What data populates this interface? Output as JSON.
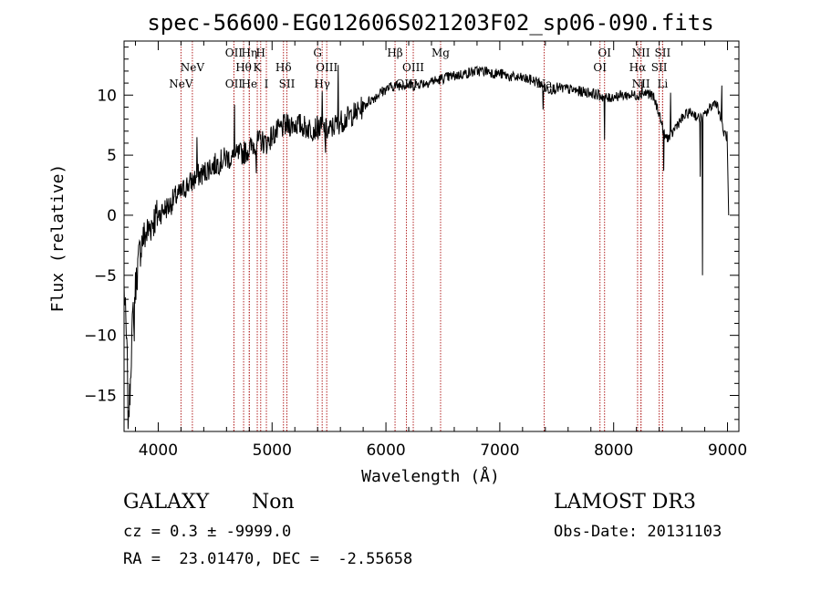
{
  "chart_data": {
    "type": "line",
    "title": "spec-56600-EG012606S021203F02_sp06-090.fits",
    "xlabel": "Wavelength (Å)",
    "ylabel": "Flux (relative)",
    "xlim": [
      3700,
      9100
    ],
    "ylim": [
      -18,
      14.5
    ],
    "xticks": [
      4000,
      5000,
      6000,
      7000,
      8000,
      9000
    ],
    "yticks": [
      -15,
      -10,
      -5,
      0,
      5,
      10
    ],
    "grid": false,
    "line_color": "#000000",
    "marker_color": "#b22222",
    "anchors": [
      [
        3700,
        -6
      ],
      [
        3715,
        -9
      ],
      [
        3730,
        -13
      ],
      [
        3745,
        -16.5
      ],
      [
        3760,
        -12
      ],
      [
        3780,
        -8
      ],
      [
        3800,
        -6
      ],
      [
        3830,
        -3.5
      ],
      [
        3860,
        -2
      ],
      [
        3900,
        -1.5
      ],
      [
        3950,
        -0.5
      ],
      [
        4000,
        0
      ],
      [
        4050,
        0.5
      ],
      [
        4100,
        0.8
      ],
      [
        4150,
        1.5
      ],
      [
        4200,
        1.8
      ],
      [
        4250,
        2.5
      ],
      [
        4300,
        2.8
      ],
      [
        4350,
        3.3
      ],
      [
        4400,
        3.5
      ],
      [
        4450,
        4
      ],
      [
        4500,
        4.2
      ],
      [
        4550,
        4.5
      ],
      [
        4600,
        4.8
      ],
      [
        4650,
        4.7
      ],
      [
        4700,
        5
      ],
      [
        4750,
        5.2
      ],
      [
        4800,
        5.5
      ],
      [
        4850,
        6
      ],
      [
        4900,
        6.2
      ],
      [
        4950,
        6
      ],
      [
        5000,
        6.6
      ],
      [
        5050,
        7
      ],
      [
        5100,
        7.4
      ],
      [
        5150,
        7.5
      ],
      [
        5200,
        7.6
      ],
      [
        5250,
        7.5
      ],
      [
        5300,
        7.3
      ],
      [
        5350,
        7.2
      ],
      [
        5400,
        7.3
      ],
      [
        5450,
        7.2
      ],
      [
        5500,
        7
      ],
      [
        5550,
        7.5
      ],
      [
        5600,
        7.8
      ],
      [
        5650,
        8
      ],
      [
        5700,
        8.4
      ],
      [
        5750,
        8.6
      ],
      [
        5800,
        9
      ],
      [
        5850,
        9.5
      ],
      [
        5900,
        9.8
      ],
      [
        5950,
        10.2
      ],
      [
        6000,
        10.5
      ],
      [
        6050,
        10.7
      ],
      [
        6100,
        10.8
      ],
      [
        6150,
        10.9
      ],
      [
        6200,
        10.8
      ],
      [
        6250,
        10.8
      ],
      [
        6300,
        11
      ],
      [
        6350,
        11
      ],
      [
        6400,
        11.2
      ],
      [
        6450,
        11.2
      ],
      [
        6500,
        11.4
      ],
      [
        6550,
        11.5
      ],
      [
        6600,
        11.6
      ],
      [
        6650,
        11.7
      ],
      [
        6700,
        11.8
      ],
      [
        6750,
        11.9
      ],
      [
        6800,
        12
      ],
      [
        6850,
        12
      ],
      [
        6900,
        12
      ],
      [
        6950,
        11.8
      ],
      [
        7000,
        11.8
      ],
      [
        7100,
        11.5
      ],
      [
        7200,
        11.4
      ],
      [
        7300,
        11.2
      ],
      [
        7350,
        11
      ],
      [
        7400,
        10.5
      ],
      [
        7450,
        10.5
      ],
      [
        7500,
        10.6
      ],
      [
        7600,
        10.5
      ],
      [
        7700,
        10.3
      ],
      [
        7800,
        10.2
      ],
      [
        7900,
        9.9
      ],
      [
        7950,
        9.7
      ],
      [
        8000,
        9.9
      ],
      [
        8100,
        10
      ],
      [
        8200,
        10
      ],
      [
        8300,
        10.2
      ],
      [
        8350,
        9.8
      ],
      [
        8400,
        8.5
      ],
      [
        8450,
        6.5
      ],
      [
        8500,
        6.5
      ],
      [
        8550,
        7.5
      ],
      [
        8600,
        8
      ],
      [
        8650,
        8.5
      ],
      [
        8700,
        8.5
      ],
      [
        8750,
        8
      ],
      [
        8800,
        8.3
      ],
      [
        8850,
        9
      ],
      [
        8900,
        9.5
      ],
      [
        8930,
        8.5
      ],
      [
        8960,
        7
      ],
      [
        9000,
        6.5
      ]
    ],
    "features": [
      {
        "x": 3735,
        "y": -17.8
      },
      {
        "x": 3745,
        "y": -16.8
      },
      {
        "x": 3790,
        "y": -10.5
      },
      {
        "x": 4340,
        "y": 6.5
      },
      {
        "x": 4670,
        "y": 9.2
      },
      {
        "x": 4862,
        "y": 3.5
      },
      {
        "x": 5440,
        "y": 10.3
      },
      {
        "x": 5470,
        "y": 5.2
      },
      {
        "x": 5580,
        "y": 12.5
      },
      {
        "x": 5730,
        "y": 8.2
      },
      {
        "x": 7380,
        "y": 8.8
      },
      {
        "x": 7920,
        "y": 6.3
      },
      {
        "x": 8250,
        "y": 11.2
      },
      {
        "x": 8440,
        "y": 3.7
      },
      {
        "x": 8500,
        "y": 10.2
      },
      {
        "x": 8780,
        "y": -5
      },
      {
        "x": 8760,
        "y": 3.2
      },
      {
        "x": 8950,
        "y": 10.8
      },
      {
        "x": 9010,
        "y": 0
      }
    ],
    "line_markers": [
      {
        "x": 4200,
        "label": "NeV",
        "row": 3
      },
      {
        "x": 4300,
        "label": "NeV",
        "row": 2
      },
      {
        "x": 4665,
        "label": "OII",
        "row": 1
      },
      {
        "x": 4665,
        "label": "OII",
        "row": 3
      },
      {
        "x": 4750,
        "label": "Hθ",
        "row": 2
      },
      {
        "x": 4800,
        "label": "Hη",
        "row": 1
      },
      {
        "x": 4800,
        "label": "He",
        "row": 3
      },
      {
        "x": 4870,
        "label": "K",
        "row": 2
      },
      {
        "x": 4900,
        "label": "H",
        "row": 1
      },
      {
        "x": 4950,
        "label": "I",
        "row": 3
      },
      {
        "x": 5100,
        "label": "Hδ",
        "row": 2
      },
      {
        "x": 5130,
        "label": "SII",
        "row": 3
      },
      {
        "x": 5400,
        "label": "G",
        "row": 1
      },
      {
        "x": 5440,
        "label": "Hγ",
        "row": 3
      },
      {
        "x": 5480,
        "label": "OIII",
        "row": 2
      },
      {
        "x": 6080,
        "label": "Hβ",
        "row": 1
      },
      {
        "x": 6180,
        "label": "OIII",
        "row": 3
      },
      {
        "x": 6240,
        "label": "OIII",
        "row": 2
      },
      {
        "x": 6480,
        "label": "Mg",
        "row": 1
      },
      {
        "x": 7390,
        "label": "Na",
        "row": 3
      },
      {
        "x": 7880,
        "label": "OI",
        "row": 2
      },
      {
        "x": 7920,
        "label": "OI",
        "row": 1
      },
      {
        "x": 8210,
        "label": "Hα",
        "row": 2
      },
      {
        "x": 8240,
        "label": "NII",
        "row": 1
      },
      {
        "x": 8240,
        "label": "NII",
        "row": 3
      },
      {
        "x": 8400,
        "label": "SII",
        "row": 2
      },
      {
        "x": 8430,
        "label": "SII",
        "row": 1
      },
      {
        "x": 8430,
        "label": "Li",
        "row": 3
      }
    ]
  },
  "info": {
    "class_label": "GALAXY",
    "subclass_label": "Non",
    "survey_label": "LAMOST DR3",
    "cz_text": "cz = 0.3 ± -9999.0",
    "obs_date_text": "Obs-Date: 20131103",
    "coords_text": "RA =  23.01470, DEC =  -2.55658"
  }
}
